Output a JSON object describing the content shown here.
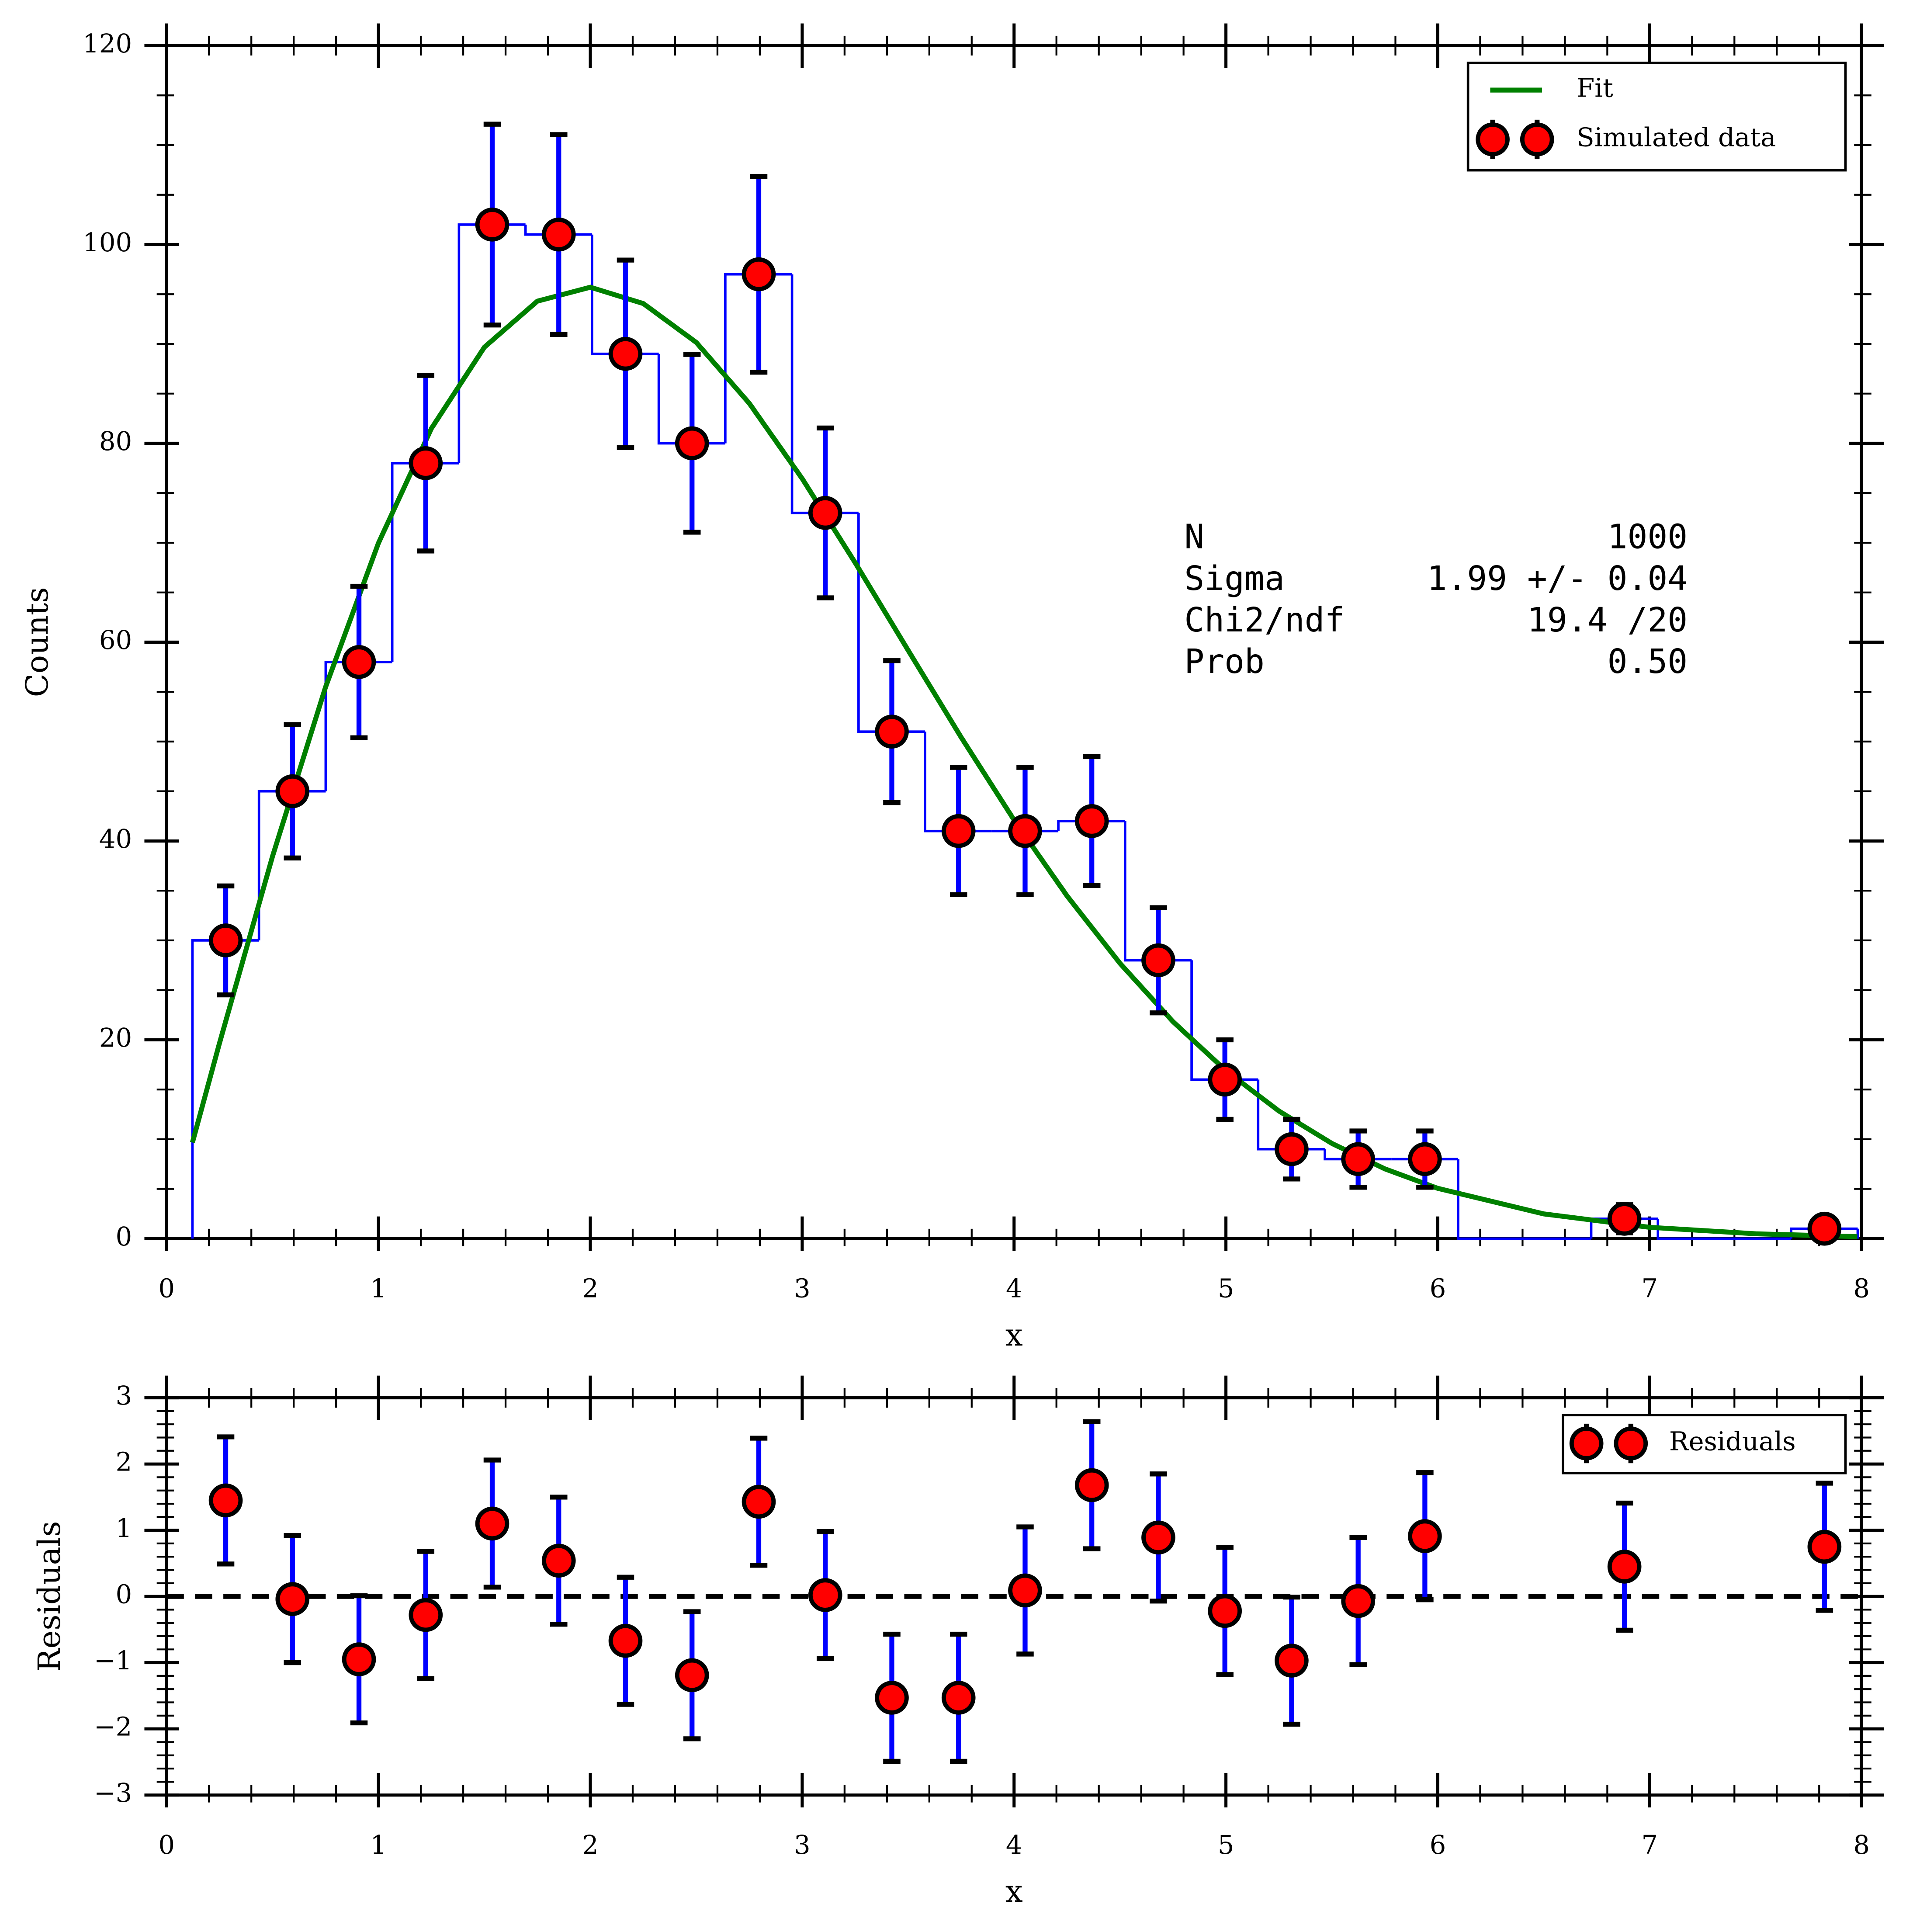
{
  "chart_data": [
    {
      "type": "histogram",
      "xlabel": "x",
      "ylabel": "Counts",
      "xlim": [
        0,
        8
      ],
      "xticks": [
        0,
        1,
        2,
        3,
        4,
        5,
        6,
        7,
        8
      ],
      "ylim": [
        0,
        120
      ],
      "yticks": [
        0,
        20,
        40,
        60,
        80,
        100,
        120
      ],
      "minor_divisions": {
        "x": 5,
        "y": 4
      },
      "color": "#0000ff",
      "bins": [
        0.122,
        0.436,
        0.751,
        1.065,
        1.38,
        1.694,
        2.008,
        2.323,
        2.637,
        2.952,
        3.266,
        3.58,
        3.895,
        4.209,
        4.524,
        4.838,
        5.152,
        5.467,
        5.781,
        6.096,
        6.41,
        6.724,
        7.039,
        7.353,
        7.668,
        7.982
      ],
      "values": [
        30,
        45,
        58,
        78,
        102,
        101,
        89,
        80,
        97,
        73,
        51,
        41,
        41,
        42,
        28,
        16,
        9,
        8,
        8,
        0,
        0,
        2,
        0,
        0,
        1
      ],
      "fit": {
        "name": "Fit",
        "color": "#008000",
        "x": [
          0.122,
          0.25,
          0.5,
          0.75,
          1,
          1.25,
          1.5,
          1.75,
          2,
          2.25,
          2.5,
          2.75,
          3,
          3.25,
          3.5,
          3.75,
          4,
          4.25,
          4.5,
          4.75,
          5,
          5.25,
          5.5,
          5.75,
          6,
          6.5,
          7,
          7.5,
          7.98
        ],
        "values": [
          9.67,
          19.69,
          38.46,
          55.46,
          69.97,
          81.5,
          89.67,
          94.3,
          95.7,
          94.06,
          90.15,
          84.03,
          76.45,
          67.99,
          59.18,
          50.44,
          42.11,
          34.48,
          27.69,
          21.83,
          16.9,
          12.84,
          9.58,
          7.02,
          5.06,
          2.49,
          1.14,
          0.49,
          0.2
        ]
      },
      "series": [
        {
          "name": "Simulated data",
          "color": "#ff0000",
          "edgecolor": "#000000",
          "errcolor": "#0000ff",
          "x": [
            0.279,
            0.594,
            0.908,
            1.223,
            1.537,
            1.851,
            2.166,
            2.48,
            2.795,
            3.109,
            3.423,
            3.738,
            4.052,
            4.367,
            4.681,
            4.995,
            5.31,
            5.624,
            5.939,
            6.881,
            7.825
          ],
          "values": [
            30,
            45,
            58,
            78,
            102,
            101,
            89,
            80,
            97,
            73,
            51,
            41,
            41,
            42,
            28,
            16,
            9,
            8,
            8,
            2,
            1
          ],
          "errors": [
            5.48,
            6.71,
            7.62,
            8.83,
            10.1,
            10.05,
            9.43,
            8.94,
            9.85,
            8.54,
            7.14,
            6.4,
            6.4,
            6.48,
            5.29,
            4,
            3,
            2.83,
            2.83,
            1.41,
            1
          ]
        }
      ],
      "stats": [
        {
          "label": "N",
          "value": "1000"
        },
        {
          "label": "Sigma",
          "value": "1.99 +/- 0.04"
        },
        {
          "label": "Chi2/ndf",
          "value": "19.4 /20"
        },
        {
          "label": "Prob",
          "value": "0.50"
        }
      ],
      "legend": "upper right"
    },
    {
      "type": "errorbar",
      "xlabel": "x",
      "ylabel": "Residuals",
      "xlim": [
        0,
        8
      ],
      "xticks": [
        0,
        1,
        2,
        3,
        4,
        5,
        6,
        7,
        8
      ],
      "ylim": [
        -3,
        3
      ],
      "yticks": [
        {
          "value": -3,
          "label": "−3"
        },
        {
          "value": -2,
          "label": "−2"
        },
        {
          "value": -1,
          "label": "−1"
        },
        0,
        1,
        2,
        3
      ],
      "minor_divisions": {
        "x": 5,
        "y": 5
      },
      "hline": 0,
      "series": [
        {
          "name": "Residuals",
          "color": "#ff0000",
          "edgecolor": "#000000",
          "errcolor": "#0000ff",
          "x": [
            0.279,
            0.594,
            0.908,
            1.223,
            1.537,
            1.851,
            2.166,
            2.48,
            2.795,
            3.109,
            3.423,
            3.738,
            4.052,
            4.367,
            4.681,
            4.995,
            5.31,
            5.624,
            5.939,
            6.881,
            7.825
          ],
          "values": [
            1.45,
            -0.04,
            -0.95,
            -0.28,
            1.1,
            0.54,
            -0.67,
            -1.19,
            1.43,
            0.02,
            -1.53,
            -1.53,
            0.09,
            1.68,
            0.89,
            -0.22,
            -0.97,
            -0.07,
            0.91,
            0.45,
            0.75
          ],
          "errors": [
            0.96,
            0.96,
            0.96,
            0.96,
            0.96,
            0.96,
            0.96,
            0.96,
            0.96,
            0.96,
            0.96,
            0.96,
            0.96,
            0.96,
            0.96,
            0.96,
            0.96,
            0.96,
            0.96,
            0.96,
            0.96
          ]
        }
      ],
      "legend": "upper right"
    }
  ]
}
